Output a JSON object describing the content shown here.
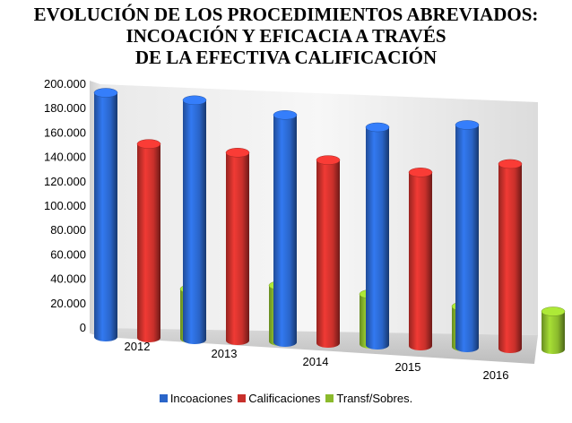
{
  "chart_data": {
    "type": "bar",
    "title_lines": [
      "EVOLUCIÓN DE LOS PROCEDIMIENTOS ABREVIADOS:",
      "INCOACIÓN Y EFICACIA A TRAVÉS",
      "DE LA EFECTIVA CALIFICACIÓN"
    ],
    "categories": [
      "2012",
      "2013",
      "2014",
      "2015",
      "2016"
    ],
    "series": [
      {
        "name": "Incoaciones",
        "color": "#2a65c9",
        "values": [
          193000,
          188000,
          177000,
          168000,
          171000
        ]
      },
      {
        "name": "Calificaciones",
        "color": "#c8302b",
        "values": [
          151000,
          145000,
          140000,
          131000,
          139000
        ]
      },
      {
        "name": "Transf/Sobres.",
        "color": "#8bba2c",
        "values": [
          32000,
          36000,
          30000,
          21000,
          18000
        ]
      }
    ],
    "ylim": [
      0,
      200000
    ],
    "yticks": [
      "0",
      "20.000",
      "40.000",
      "60.000",
      "80.000",
      "100.000",
      "120.000",
      "140.000",
      "160.000",
      "180.000",
      "200.000"
    ],
    "grid": false,
    "legend_position": "bottom",
    "chart_style": "3d-cylinder-bars"
  }
}
